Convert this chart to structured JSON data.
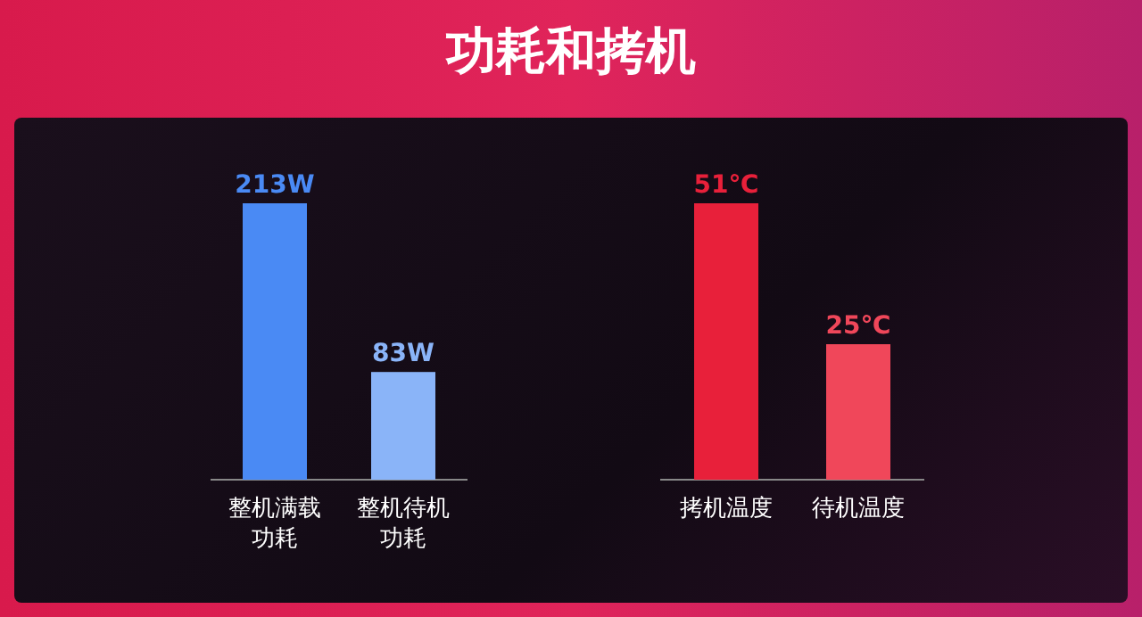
{
  "chart_data": [
    {
      "type": "bar",
      "title": "功耗和拷机",
      "categories": [
        "整机满载功耗",
        "整机待机功耗"
      ],
      "values": [
        213,
        83
      ],
      "colors": [
        "#4a8af4",
        "#8ab4f8"
      ],
      "value_labels": [
        "213W",
        "83W"
      ]
    },
    {
      "type": "bar",
      "categories": [
        "拷机温度",
        "待机温度"
      ],
      "values": [
        51,
        25
      ],
      "colors": [
        "#e8203a",
        "#f0475a"
      ],
      "value_labels": [
        "51℃",
        "25℃"
      ]
    }
  ]
}
